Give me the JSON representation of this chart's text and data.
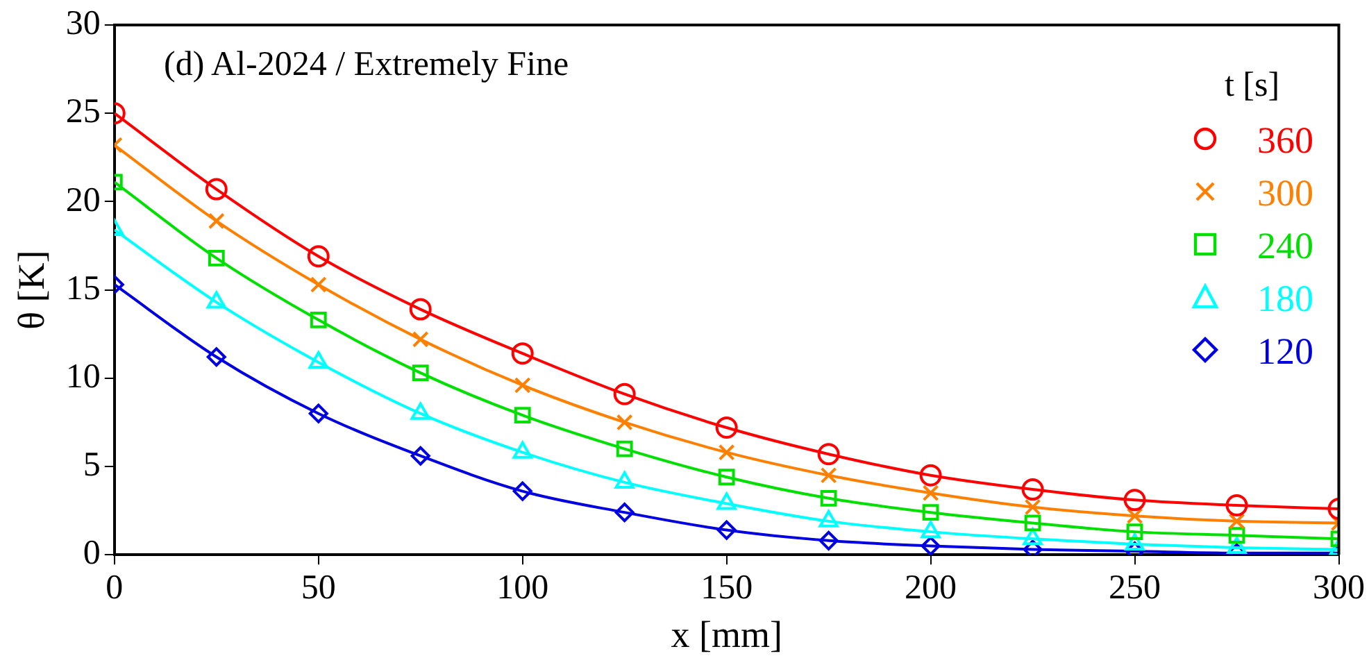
{
  "chart_data": {
    "type": "line",
    "title": "(d) Al-2024 / Extremely Fine",
    "xlabel": "x [mm]",
    "ylabel": "θ [K]",
    "legend_title": "t  [s]",
    "x": [
      0,
      25,
      50,
      75,
      100,
      125,
      150,
      175,
      200,
      225,
      250,
      275,
      300
    ],
    "xlim": [
      0,
      300
    ],
    "xticks": [
      0,
      50,
      100,
      150,
      200,
      250,
      300
    ],
    "ylim": [
      0,
      30
    ],
    "yticks": [
      0,
      5,
      10,
      15,
      20,
      25,
      30
    ],
    "grid": false,
    "legend": "top right",
    "line_style": "solid",
    "series": [
      {
        "name": "360",
        "color": "#ff0000",
        "marker": "circle",
        "values": [
          25.0,
          20.7,
          16.9,
          13.9,
          11.4,
          9.1,
          7.2,
          5.7,
          4.5,
          3.7,
          3.1,
          2.8,
          2.6
        ]
      },
      {
        "name": "300",
        "color": "#ff8000",
        "marker": "cross",
        "values": [
          23.2,
          18.9,
          15.3,
          12.2,
          9.6,
          7.5,
          5.8,
          4.5,
          3.5,
          2.7,
          2.2,
          1.9,
          1.8
        ]
      },
      {
        "name": "240",
        "color": "#00e000",
        "marker": "square",
        "values": [
          21.1,
          16.8,
          13.3,
          10.3,
          7.9,
          6.0,
          4.4,
          3.2,
          2.4,
          1.8,
          1.3,
          1.1,
          0.9
        ]
      },
      {
        "name": "180",
        "color": "#00ffff",
        "marker": "triangle",
        "values": [
          18.4,
          14.3,
          10.9,
          8.0,
          5.8,
          4.1,
          2.9,
          1.9,
          1.3,
          0.9,
          0.6,
          0.4,
          0.3
        ]
      },
      {
        "name": "120",
        "color": "#0000e0",
        "marker": "diamond",
        "values": [
          15.3,
          11.2,
          8.0,
          5.6,
          3.6,
          2.4,
          1.4,
          0.8,
          0.5,
          0.3,
          0.2,
          0.1,
          0.1
        ]
      }
    ]
  }
}
